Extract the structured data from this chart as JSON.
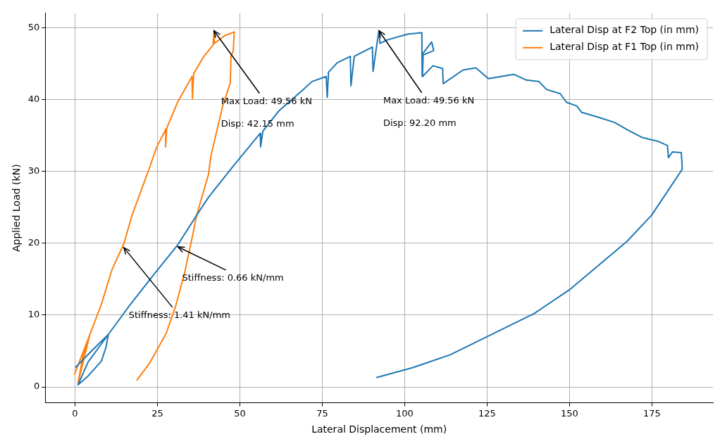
{
  "chart_data": {
    "type": "line",
    "xlabel": "Lateral Displacement (mm)",
    "ylabel": "Applied Load (kN)",
    "xlim": [
      -9,
      193.5
    ],
    "ylim": [
      -2.2,
      52
    ],
    "xticks": [
      0,
      25,
      50,
      75,
      100,
      125,
      150,
      175
    ],
    "yticks": [
      0,
      10,
      20,
      30,
      40,
      50
    ],
    "grid": true,
    "legend": "top right",
    "series": [
      {
        "name": "Lateral Disp at F2 Top (in mm)",
        "color": "#1f77b4",
        "x": [
          0.1,
          5,
          10.1,
          9.4,
          8.0,
          3.7,
          0.9,
          4,
          10.1,
          16,
          23.3,
          31.2,
          36.9,
          40.5,
          47.6,
          56.2,
          56.3,
          57,
          61.8,
          69.0,
          71.9,
          76.2,
          76.5,
          76.9,
          79.5,
          83.5,
          83.7,
          84.7,
          90.2,
          90.4,
          91.5,
          92.2,
          92.5,
          94.8,
          100.9,
          105.2,
          105.3,
          105.5,
          108.2,
          108.8,
          105.6,
          105.4,
          108.6,
          111.5,
          111.7,
          117.7,
          121.6,
          125.4,
          133.1,
          136.9,
          140.7,
          143,
          147.2,
          149.1,
          152.2,
          153.7,
          158.3,
          163.7,
          167.5,
          172.1,
          176.7,
          179.7,
          180,
          181.2,
          183.9,
          184.2,
          174.9,
          167.5,
          159.8,
          149.9,
          139.2,
          125.4,
          113.9,
          102.5,
          91.4
        ],
        "values": [
          2.7,
          5,
          7.3,
          5.5,
          3.6,
          1.4,
          0.3,
          3.5,
          7.3,
          11,
          15.3,
          19.8,
          23.9,
          26.4,
          30.5,
          35.3,
          33.4,
          35.6,
          38.4,
          41.3,
          42.5,
          43.2,
          40.3,
          43.8,
          45.1,
          46.0,
          41.9,
          46.0,
          47.3,
          43.9,
          47.5,
          49.56,
          47.8,
          48.3,
          49.1,
          49.3,
          43.2,
          46.4,
          48.0,
          46.8,
          46.2,
          43.2,
          44.7,
          44.3,
          42.2,
          44.1,
          44.4,
          42.9,
          43.5,
          42.7,
          42.5,
          41.4,
          40.8,
          39.6,
          39.1,
          38.2,
          37.6,
          36.8,
          35.8,
          34.7,
          34.2,
          33.6,
          31.9,
          32.7,
          32.6,
          30.3,
          23.9,
          20.3,
          17.3,
          13.5,
          10.2,
          7.1,
          4.5,
          2.7,
          1.3
        ]
      },
      {
        "name": "Lateral Disp at F1 Top (in mm)",
        "color": "#ff7f0e",
        "x": [
          -0.2,
          4.5,
          0.9,
          2.5,
          4.5,
          8,
          11.2,
          14.8,
          17.3,
          22.6,
          24.8,
          27.6,
          27.5,
          27.8,
          31.2,
          35.5,
          35.6,
          36,
          39.1,
          41.9,
          42.15,
          42.3,
          45.5,
          48.3,
          48.0,
          47.3,
          47.1,
          44.8,
          41.2,
          40.5,
          36.9,
          35.5,
          33.3,
          30.5,
          27.6,
          22.6,
          18.7
        ],
        "values": [
          1.7,
          7.3,
          0.5,
          4.5,
          7.3,
          11.5,
          16.3,
          19.9,
          23.9,
          30.5,
          33.4,
          35.9,
          33.4,
          36,
          39.7,
          43.2,
          40.1,
          43.6,
          46.0,
          47.6,
          49.56,
          47.8,
          48.9,
          49.4,
          46.7,
          46.0,
          42.3,
          39.1,
          32.1,
          29.6,
          23.9,
          20.7,
          16.0,
          11.2,
          7.4,
          3.3,
          0.9
        ]
      }
    ],
    "annotations": [
      {
        "text": "Max Load: 49.56 kN",
        "x": 42.15,
        "y": 49.56
      },
      "Disp: 42.15 mm",
      {
        "text": "Max Load: 49.56 kN",
        "x": 92.2,
        "y": 49.56
      },
      "Disp: 92.20 mm",
      {
        "text": "Stiffness: 0.66 kN/mm",
        "x": 31.2,
        "y": 19.5
      },
      {
        "text": "Stiffness: 1.41 kN/mm",
        "x": 14.8,
        "y": 19.4
      }
    ]
  }
}
